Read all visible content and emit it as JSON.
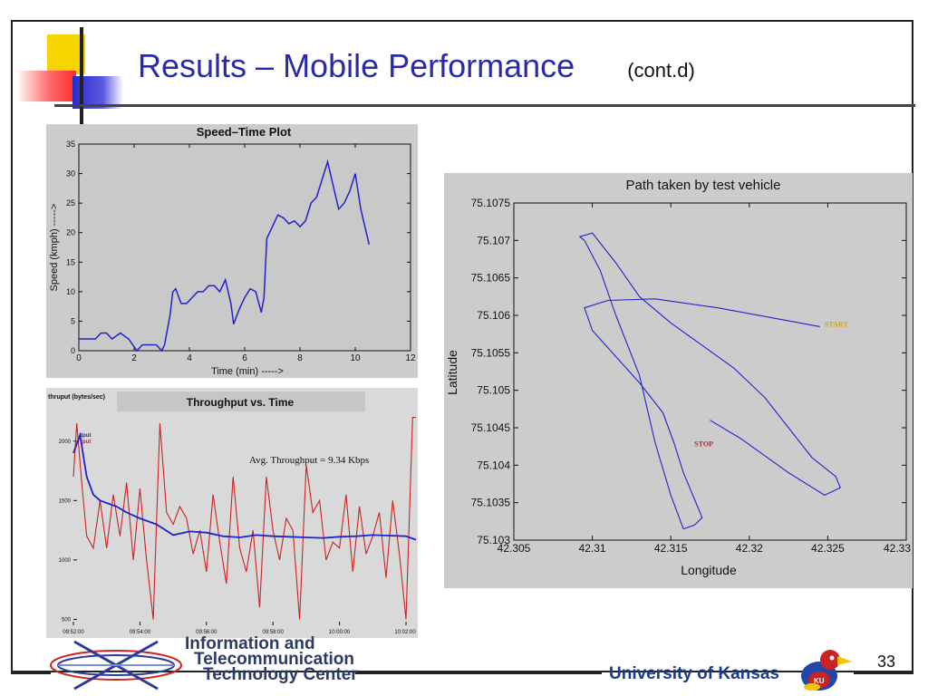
{
  "slide": {
    "title": "Results – Mobile Performance",
    "title_suffix": "(cont.d)",
    "page_number": "33",
    "footer_left": [
      "Information and",
      "Telecommunication",
      "Technology Center"
    ],
    "footer_right": "University of Kansas",
    "colors": {
      "title": "#2b2baa",
      "series": "#2222cc",
      "throughput_red": "#cc2222",
      "panel": "#cccccc"
    }
  },
  "chart_data": [
    {
      "type": "line",
      "title": "Speed–Time Plot",
      "xlabel": "Time (min) ----->",
      "ylabel": "Speed (kmph) ----->",
      "xlim": [
        0,
        12
      ],
      "ylim": [
        0,
        35
      ],
      "xticks": [
        0,
        2,
        4,
        6,
        8,
        10,
        12
      ],
      "yticks": [
        0,
        5,
        10,
        15,
        20,
        25,
        30,
        35
      ],
      "series": [
        {
          "x": [
            0,
            0.6,
            0.8,
            1.0,
            1.2,
            1.5,
            1.8,
            2.1,
            2.3,
            2.5,
            2.8,
            3.0,
            3.1,
            3.3,
            3.4,
            3.5,
            3.7,
            3.9,
            4.1,
            4.3,
            4.5,
            4.7,
            4.9,
            5.1,
            5.3,
            5.5,
            5.6,
            5.8,
            6.0,
            6.2,
            6.4,
            6.6,
            6.7,
            6.8,
            7.0,
            7.2,
            7.4,
            7.6,
            7.8,
            8.0,
            8.2,
            8.4,
            8.6,
            8.8,
            9.0,
            9.2,
            9.4,
            9.6,
            9.8,
            10.0,
            10.2,
            10.4,
            10.5
          ],
          "y": [
            2,
            2,
            3,
            3,
            2,
            3,
            2,
            0,
            1,
            1,
            1,
            0,
            1,
            6,
            10,
            10.5,
            8,
            8,
            9,
            10,
            10,
            11,
            11,
            10,
            12,
            8,
            4.5,
            7,
            9,
            10.5,
            10,
            6.5,
            9,
            19,
            21,
            23,
            22.5,
            21.5,
            22,
            21,
            22,
            25,
            26,
            29,
            32,
            28,
            24,
            25,
            27,
            30,
            24,
            20,
            18
          ]
        }
      ]
    },
    {
      "type": "line",
      "title": "Throughput vs. Time",
      "ylabel": "thruput (bytes/sec)",
      "annotation": "Avg. Throughput = 9.34 Kbps",
      "legend": [
        "tput",
        "tput"
      ],
      "legend_placement": "top-left",
      "x_categories": [
        "09:52:00",
        "09:54:00",
        "09:56:00",
        "09:58:00",
        "10:00:00",
        "10:02:00"
      ],
      "xlim_min": [
        0,
        10.3
      ],
      "ylim": [
        450,
        2250
      ],
      "yticks": [
        500,
        1000,
        1500,
        2000
      ],
      "series": [
        {
          "name": "tput",
          "color": "blue",
          "x": [
            0,
            0.2,
            0.4,
            0.6,
            0.8,
            1.0,
            1.3,
            1.6,
            2.0,
            2.5,
            3.0,
            3.5,
            4.0,
            4.5,
            5.0,
            5.5,
            6.0,
            6.5,
            7.0,
            7.5,
            8.0,
            8.5,
            9.0,
            9.5,
            10.0,
            10.3
          ],
          "y": [
            1900,
            2050,
            1700,
            1550,
            1500,
            1480,
            1450,
            1400,
            1350,
            1300,
            1210,
            1240,
            1230,
            1200,
            1190,
            1210,
            1200,
            1195,
            1190,
            1185,
            1195,
            1200,
            1210,
            1205,
            1200,
            1170
          ]
        },
        {
          "name": "tput",
          "color": "red",
          "x": [
            0,
            0.1,
            0.25,
            0.4,
            0.6,
            0.8,
            1.0,
            1.2,
            1.4,
            1.6,
            1.8,
            2.0,
            2.2,
            2.4,
            2.6,
            2.8,
            3.0,
            3.2,
            3.4,
            3.6,
            3.8,
            4.0,
            4.2,
            4.4,
            4.6,
            4.8,
            5.0,
            5.2,
            5.4,
            5.6,
            5.8,
            6.0,
            6.2,
            6.4,
            6.6,
            6.8,
            7.0,
            7.2,
            7.4,
            7.6,
            7.8,
            8.0,
            8.2,
            8.4,
            8.6,
            8.8,
            9.0,
            9.2,
            9.4,
            9.6,
            9.8,
            10.0,
            10.2,
            10.3
          ],
          "y": [
            1700,
            2150,
            1650,
            1200,
            1100,
            1500,
            1100,
            1550,
            1200,
            1650,
            1000,
            1600,
            1000,
            500,
            2150,
            1400,
            1300,
            1450,
            1350,
            1050,
            1250,
            900,
            1550,
            1150,
            800,
            1700,
            1100,
            900,
            1250,
            600,
            1700,
            1250,
            1000,
            1350,
            1250,
            500,
            1800,
            1400,
            1500,
            1000,
            1150,
            1100,
            1550,
            900,
            1450,
            1050,
            1200,
            1400,
            850,
            1500,
            1050,
            500,
            2200,
            2200
          ]
        }
      ]
    },
    {
      "type": "line",
      "title": "Path taken by test vehicle",
      "xlabel": "Longitude",
      "ylabel": "Latitude",
      "xlim": [
        42.305,
        42.33
      ],
      "ylim": [
        75.103,
        75.1075
      ],
      "xticks": [
        "42.305",
        "42.31",
        "42.315",
        "42.32",
        "42.325",
        "42.33"
      ],
      "yticks": [
        "75.103",
        "75.1035",
        "75.104",
        "75.1045",
        "75.105",
        "75.1055",
        "75.106",
        "75.1065",
        "75.107",
        "75.1075"
      ],
      "annotations": [
        {
          "text": "START",
          "x": 42.3248,
          "y": 75.10585,
          "color": "#d4a900"
        },
        {
          "text": "STOP",
          "x": 42.3165,
          "y": 75.10425,
          "color": "#cc2222"
        }
      ],
      "series": [
        {
          "x": [
            42.3245,
            42.318,
            42.314,
            42.311,
            42.3095,
            42.31,
            42.3115,
            42.313,
            42.3145,
            42.3152,
            42.3158,
            42.3165,
            42.317,
            42.3165,
            42.3158,
            42.315,
            42.314,
            42.313,
            42.3115,
            42.3105,
            42.3095,
            42.3092,
            42.31,
            42.3115,
            42.313,
            42.315,
            42.317,
            42.319,
            42.321,
            42.3225,
            42.324,
            42.3255,
            42.3258,
            42.3248,
            42.3225,
            42.3195,
            42.3175
          ],
          "y": [
            75.10585,
            75.1061,
            75.10622,
            75.1062,
            75.1061,
            75.1058,
            75.10545,
            75.1051,
            75.1047,
            75.1043,
            75.1039,
            75.10355,
            75.1033,
            75.1032,
            75.10315,
            75.1036,
            75.1043,
            75.1052,
            75.106,
            75.1066,
            75.107,
            75.10705,
            75.1071,
            75.1067,
            75.10625,
            75.1059,
            75.1056,
            75.1053,
            75.1049,
            75.1045,
            75.1041,
            75.10385,
            75.1037,
            75.1036,
            75.1039,
            75.10435,
            75.1046
          ]
        }
      ]
    }
  ]
}
